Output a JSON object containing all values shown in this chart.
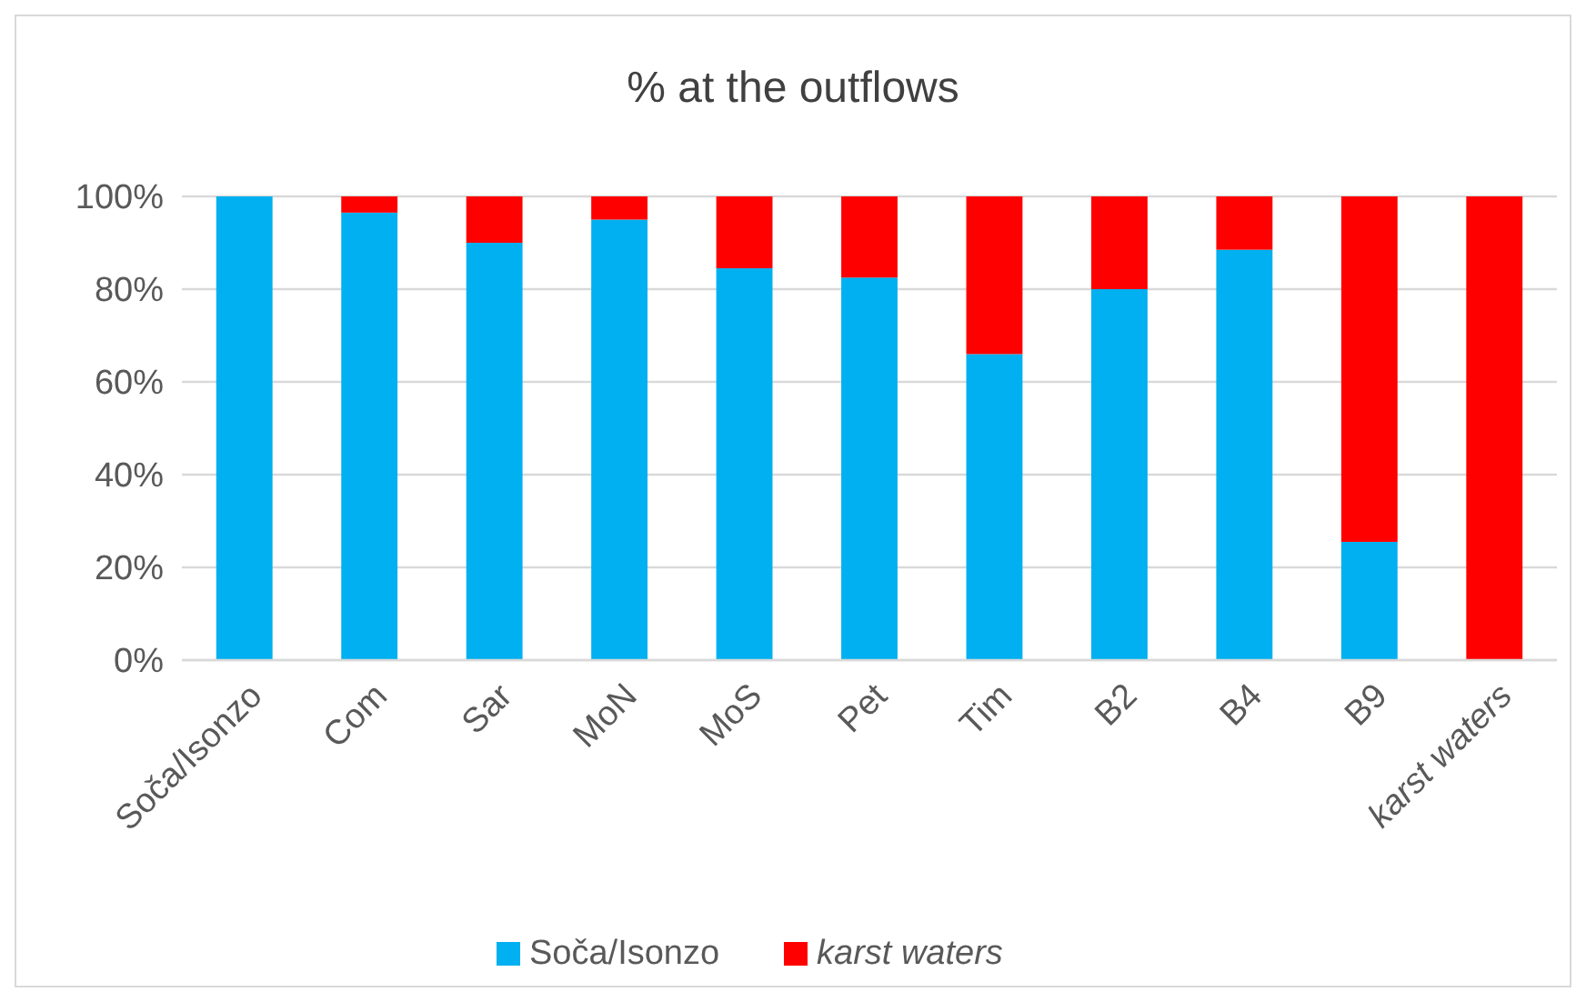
{
  "chart_data": {
    "type": "bar",
    "title": "% at the outflows",
    "stacked": true,
    "categories": [
      "Soča/Isonzo",
      "Com",
      "Sar",
      "MoN",
      "MoS",
      "Pet",
      "Tim",
      "B2",
      "B4",
      "B9",
      "karst waters"
    ],
    "series": [
      {
        "name": "Soča/Isonzo",
        "color": "#00b0f0",
        "values": [
          100,
          96.5,
          90,
          95,
          84.5,
          82.5,
          66,
          80,
          88.5,
          25.5,
          0
        ]
      },
      {
        "name": "karst waters",
        "color": "#ff0000",
        "values": [
          0,
          3.5,
          10,
          5,
          15.5,
          17.5,
          34,
          20,
          11.5,
          74.5,
          100
        ]
      }
    ],
    "ylim": [
      0,
      100
    ],
    "yticks": [
      {
        "value": 0,
        "label": "0%"
      },
      {
        "value": 20,
        "label": "20%"
      },
      {
        "value": 40,
        "label": "40%"
      },
      {
        "value": 60,
        "label": "60%"
      },
      {
        "value": 80,
        "label": "80%"
      },
      {
        "value": 100,
        "label": "100%"
      }
    ],
    "grid": "y",
    "legend": "bottom"
  }
}
